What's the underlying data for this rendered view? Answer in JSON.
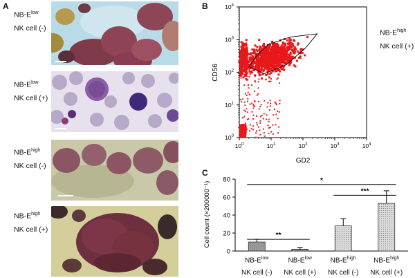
{
  "panel_a": {
    "letter": "A",
    "rows": [
      {
        "name_base": "NB-E",
        "name_sup": "low",
        "nk": "NK cell (-)"
      },
      {
        "name_base": "NB-E",
        "name_sup": "low",
        "nk": "NK cell (+)"
      },
      {
        "name_base": "NB-E",
        "name_sup": "high",
        "nk": "NK cell (-)"
      },
      {
        "name_base": "NB-E",
        "name_sup": "high",
        "nk": "NK cell (+)"
      }
    ]
  },
  "panel_b": {
    "letter": "B",
    "label_base": "NB-E",
    "label_sup": "high",
    "label_nk": "NK cell (+)"
  },
  "panel_c": {
    "letter": "C",
    "group_base": "NB-E",
    "nk_neg": "NK cell (-)",
    "nk_pos": "NK cell (+)"
  },
  "chart_data": [
    {
      "type": "scatter",
      "xlabel": "GD2",
      "ylabel": "CD56",
      "x_scale": "log",
      "y_scale": "log",
      "xlim": [
        1,
        10000
      ],
      "ylim": [
        1,
        10000
      ],
      "x_ticks": [
        "10^0",
        "10^1",
        "10^2",
        "10^3",
        "10^4"
      ],
      "y_ticks": [
        "10^0",
        "10^1",
        "10^2",
        "10^3",
        "10^4"
      ],
      "point_color": "#e8191b",
      "gate": [
        [
          2.0,
          150
        ],
        [
          3.5,
          320
        ],
        [
          8,
          700
        ],
        [
          40,
          1200
        ],
        [
          280,
          1500
        ],
        [
          120,
          550
        ],
        [
          30,
          170
        ],
        [
          6,
          90
        ],
        [
          2.0,
          150
        ]
      ]
    },
    {
      "type": "bar",
      "categories": [
        "NB-E low NK cell (-)",
        "NB-E low NK cell (+)",
        "NB-E high NK cell (-)",
        "NB-E high NK cell (+)"
      ],
      "values": [
        10,
        2,
        28,
        53
      ],
      "errors": [
        3,
        2,
        8,
        14
      ],
      "ylabel": "Cell count (×200000⁻¹)",
      "ylim": [
        0,
        80
      ],
      "yticks": [
        0,
        20,
        40,
        60,
        80
      ],
      "bar_fills": [
        "#8c8c8c",
        "#8c8c8c",
        "#c8c8c8",
        "#c8c8c8"
      ],
      "significance": [
        {
          "from": 0,
          "to": 1,
          "label": "**"
        },
        {
          "from": 2,
          "to": 3,
          "label": "***"
        },
        {
          "from": 0,
          "to": 3,
          "label": "*"
        }
      ]
    }
  ]
}
